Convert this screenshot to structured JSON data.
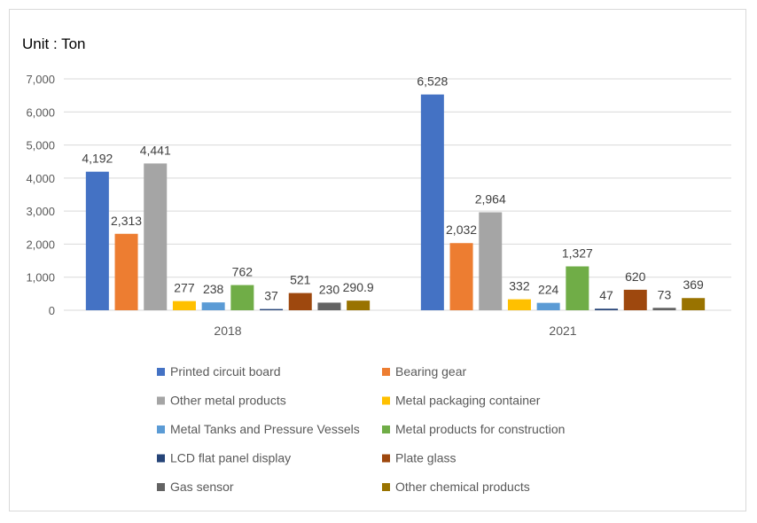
{
  "chart_data": {
    "type": "bar",
    "title": "Unit : Ton",
    "categories": [
      "2018",
      "2021"
    ],
    "ylim": [
      0,
      7000
    ],
    "yticks": [
      0,
      1000,
      2000,
      3000,
      4000,
      5000,
      6000,
      7000
    ],
    "ytick_labels": [
      "0",
      "1,000",
      "2,000",
      "3,000",
      "4,000",
      "5,000",
      "6,000",
      "7,000"
    ],
    "grid": true,
    "legend_position": "bottom",
    "series": [
      {
        "name": "Printed circuit board",
        "color": "#4472C4",
        "values": [
          4192,
          6528
        ],
        "labels": [
          "4,192",
          "6,528"
        ]
      },
      {
        "name": "Bearing gear",
        "color": "#ED7D31",
        "values": [
          2313,
          2032
        ],
        "labels": [
          "2,313",
          "2,032"
        ]
      },
      {
        "name": "Other metal products",
        "color": "#A5A5A5",
        "values": [
          4441,
          2964
        ],
        "labels": [
          "4,441",
          "2,964"
        ]
      },
      {
        "name": "Metal packaging container",
        "color": "#FFC000",
        "values": [
          277,
          332
        ],
        "labels": [
          "277",
          "332"
        ]
      },
      {
        "name": "Metal Tanks and Pressure Vessels",
        "color": "#5B9BD5",
        "values": [
          238,
          224
        ],
        "labels": [
          "238",
          "224"
        ]
      },
      {
        "name": "Metal products for construction",
        "color": "#70AD47",
        "values": [
          762,
          1327
        ],
        "labels": [
          "762",
          "1,327"
        ]
      },
      {
        "name": "LCD flat panel display",
        "color": "#264478",
        "values": [
          37,
          47
        ],
        "labels": [
          "37",
          "47"
        ]
      },
      {
        "name": "Plate glass",
        "color": "#9E480E",
        "values": [
          521,
          620
        ],
        "labels": [
          "521",
          "620"
        ]
      },
      {
        "name": "Gas sensor",
        "color": "#636363",
        "values": [
          230,
          73
        ],
        "labels": [
          "230",
          "73"
        ]
      },
      {
        "name": "Other chemical products",
        "color": "#997300",
        "values": [
          290.9,
          369
        ],
        "labels": [
          "290.9",
          "369"
        ]
      }
    ]
  }
}
